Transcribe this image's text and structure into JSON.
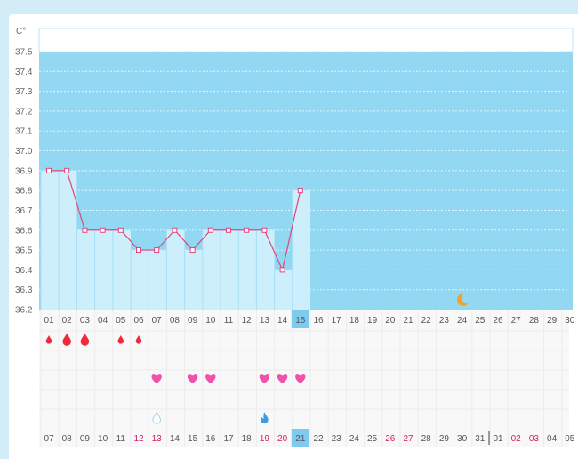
{
  "colors": {
    "plot_bg": "#93d8f3",
    "area_fill": "#cdeefb",
    "line": "#e0457b",
    "point_fill": "#ffffff",
    "tick_text": "#555555",
    "weekend_text": "#d0206a",
    "heart": "#f052ab",
    "drop_red": "#ef2a3a",
    "highlight_bg": "#7dcbee",
    "moon": "#f0a12a",
    "fluid_light": "#9fd4ef",
    "fluid_dark": "#3a9fd8"
  },
  "chart_data": {
    "type": "line",
    "ylabel": "C°",
    "ylim": [
      36.2,
      37.5
    ],
    "yticks": [
      "36.2",
      "36.3",
      "36.4",
      "36.5",
      "36.6",
      "36.7",
      "36.8",
      "36.9",
      "37.0",
      "37.1",
      "37.2",
      "37.3",
      "37.4",
      "37.5"
    ],
    "grid": true,
    "cycle_days": [
      "01",
      "02",
      "03",
      "04",
      "05",
      "06",
      "07",
      "08",
      "09",
      "10",
      "11",
      "12",
      "13",
      "14",
      "15",
      "16",
      "17",
      "18",
      "19",
      "20",
      "21",
      "22",
      "23",
      "24",
      "25",
      "26",
      "27",
      "28",
      "29",
      "30"
    ],
    "calendar_dates": [
      "07",
      "08",
      "09",
      "10",
      "11",
      "12",
      "13",
      "14",
      "15",
      "16",
      "17",
      "18",
      "19",
      "20",
      "21",
      "22",
      "23",
      "24",
      "25",
      "26",
      "27",
      "28",
      "29",
      "30",
      "31",
      "01",
      "02",
      "03",
      "04",
      "05"
    ],
    "weekend_calendar_indices": [
      5,
      6,
      12,
      13,
      19,
      20,
      26,
      27
    ],
    "month_separator_index": 25,
    "highlight_index": 14,
    "series": [
      {
        "values": [
          36.9,
          36.9,
          36.6,
          36.6,
          36.6,
          36.5,
          36.5,
          36.6,
          36.5,
          36.6,
          36.6,
          36.6,
          36.6,
          36.4,
          36.8
        ]
      }
    ],
    "period_flow": [
      1,
      2,
      2,
      null,
      1,
      1,
      null,
      null,
      null,
      null,
      null,
      null,
      null,
      null,
      null,
      null,
      null,
      null,
      null,
      null,
      null,
      null,
      null,
      null,
      null,
      null,
      null,
      null,
      null,
      null
    ],
    "intercourse_indices": [
      6,
      8,
      9,
      12,
      13,
      14
    ],
    "cervical_fluid": [
      {
        "index": 6,
        "type": "light"
      },
      {
        "index": 12,
        "type": "dark"
      }
    ],
    "moon_index": 23
  }
}
